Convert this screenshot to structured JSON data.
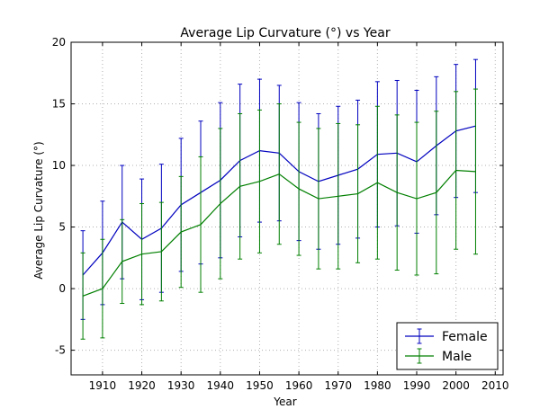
{
  "chart_data": {
    "type": "line",
    "title": "Average Lip Curvature (°) vs Year",
    "xlabel": "Year",
    "ylabel": "Average Lip Curvature (°)",
    "xlim": [
      1902,
      2012
    ],
    "ylim": [
      -7,
      20
    ],
    "xticks": [
      1910,
      1920,
      1930,
      1940,
      1950,
      1960,
      1970,
      1980,
      1990,
      2000,
      2010
    ],
    "yticks": [
      -5,
      0,
      5,
      10,
      15,
      20
    ],
    "grid": true,
    "legend_position": "lower-right",
    "x": [
      1905,
      1910,
      1915,
      1920,
      1925,
      1930,
      1935,
      1940,
      1945,
      1950,
      1955,
      1960,
      1965,
      1970,
      1975,
      1980,
      1985,
      1990,
      1995,
      2000,
      2005
    ],
    "series": [
      {
        "name": "Female",
        "color": "#0000bf",
        "values": [
          1.1,
          2.9,
          5.4,
          4.0,
          4.9,
          6.8,
          7.8,
          8.8,
          10.4,
          11.2,
          11.0,
          9.5,
          8.7,
          9.2,
          9.7,
          10.9,
          11.0,
          10.3,
          11.6,
          12.8,
          13.2
        ],
        "errors": [
          3.6,
          4.2,
          4.6,
          4.9,
          5.2,
          5.4,
          5.8,
          6.3,
          6.2,
          5.8,
          5.5,
          5.6,
          5.5,
          5.6,
          5.6,
          5.9,
          5.9,
          5.8,
          5.6,
          5.4,
          5.4
        ]
      },
      {
        "name": "Male",
        "color": "#007f00",
        "values": [
          -0.6,
          0.0,
          2.2,
          2.8,
          3.0,
          4.6,
          5.2,
          6.9,
          8.3,
          8.7,
          9.3,
          8.1,
          7.3,
          7.5,
          7.7,
          8.6,
          7.8,
          7.3,
          7.8,
          9.6,
          9.5
        ],
        "errors": [
          3.5,
          4.0,
          3.4,
          4.1,
          4.0,
          4.5,
          5.5,
          6.1,
          5.9,
          5.8,
          5.7,
          5.4,
          5.7,
          5.9,
          5.6,
          6.2,
          6.3,
          6.2,
          6.6,
          6.4,
          6.7
        ]
      }
    ]
  }
}
